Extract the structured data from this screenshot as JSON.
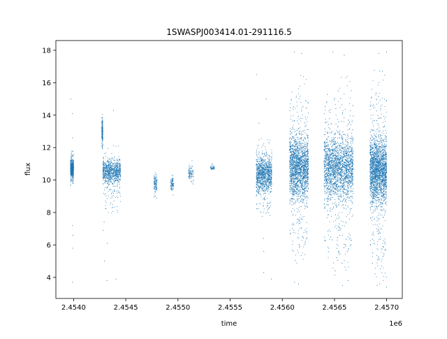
{
  "chart_data": {
    "type": "scatter",
    "title": "1SWASPJ003414.01-291116.5",
    "xlabel": "time",
    "ylabel": "flux",
    "x_offset_label": "1e6",
    "xlim": [
      2.45383,
      2.45715
    ],
    "ylim": [
      2.7,
      18.6
    ],
    "x_ticks": [
      2.454,
      2.4545,
      2.455,
      2.4555,
      2.456,
      2.4565,
      2.457
    ],
    "x_tick_labels": [
      "2.4540",
      "2.4545",
      "2.4550",
      "2.4555",
      "2.4560",
      "2.4565",
      "2.4570"
    ],
    "y_ticks": [
      4,
      6,
      8,
      10,
      12,
      14,
      16,
      18
    ],
    "y_tick_labels": [
      "4",
      "6",
      "8",
      "10",
      "12",
      "14",
      "16",
      "18"
    ],
    "grid": false,
    "legend": "none",
    "color": "#1f77b4",
    "series": [
      {
        "clusters": [
          {
            "x": [
              2.45397,
              2.454
            ],
            "core": [
              10.0,
              11.4
            ],
            "spread": [
              9.6,
              11.8
            ],
            "outliers": [
              5.8,
              6.6,
              7.2,
              12.6,
              14.1,
              15.0,
              3.7
            ],
            "weight": 3
          },
          {
            "x": [
              2.45427,
              2.45428
            ],
            "core": [
              12.0,
              14.0
            ],
            "spread": [
              11.6,
              14.2
            ],
            "outliers": [],
            "weight": 1
          },
          {
            "x": [
              2.45428,
              2.45445
            ],
            "core": [
              9.5,
              11.6
            ],
            "spread": [
              7.8,
              12.2
            ],
            "outliers": [
              5.0,
              6.1,
              6.9,
              7.4,
              3.8,
              3.9,
              14.3
            ],
            "weight": 4
          },
          {
            "x": [
              2.45477,
              2.4548
            ],
            "core": [
              9.0,
              10.6
            ],
            "spread": [
              8.8,
              10.8
            ],
            "outliers": [],
            "weight": 0.5
          },
          {
            "x": [
              2.45493,
              2.45496
            ],
            "core": [
              9.2,
              10.3
            ],
            "spread": [
              9.0,
              10.4
            ],
            "outliers": [],
            "weight": 0.4
          },
          {
            "x": [
              2.4551,
              2.45515
            ],
            "core": [
              9.8,
              11.0
            ],
            "spread": [
              9.6,
              11.2
            ],
            "outliers": [],
            "weight": 0.4
          },
          {
            "x": [
              2.45531,
              2.45535
            ],
            "core": [
              10.6,
              10.9
            ],
            "spread": [
              10.5,
              11.0
            ],
            "outliers": [],
            "weight": 0.2
          },
          {
            "x": [
              2.45575,
              2.4559
            ],
            "core": [
              8.8,
              12.0
            ],
            "spread": [
              7.6,
              12.6
            ],
            "outliers": [
              16.5,
              15.0,
              13.5,
              5.6,
              4.3,
              3.9,
              6.4
            ],
            "weight": 5
          },
          {
            "x": [
              2.45607,
              2.45625
            ],
            "core": [
              8.0,
              13.6
            ],
            "spread": [
              4.5,
              16.5
            ],
            "outliers": [
              17.9,
              17.8,
              3.6,
              3.7
            ],
            "weight": 10
          },
          {
            "x": [
              2.4564,
              2.45668
            ],
            "core": [
              8.0,
              13.6
            ],
            "spread": [
              4.0,
              16.4
            ],
            "outliers": [
              17.9,
              17.7,
              3.5,
              3.8
            ],
            "weight": 12
          },
          {
            "x": [
              2.45684,
              2.457
            ],
            "core": [
              7.8,
              13.4
            ],
            "spread": [
              3.6,
              16.8
            ],
            "outliers": [
              17.9,
              17.8,
              3.4,
              3.5
            ],
            "weight": 11
          }
        ]
      }
    ]
  }
}
